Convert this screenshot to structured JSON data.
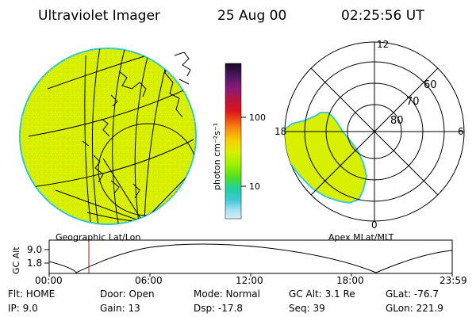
{
  "header": {
    "instrument": "Ultraviolet Imager",
    "date": "25 Aug 00",
    "time": "02:25:56 UT"
  },
  "colorbar": {
    "unit_label": "photon cm⁻²s⁻¹",
    "ticks": [
      "100",
      "10"
    ],
    "colors": [
      "#1a0a24",
      "#4a1860",
      "#8a1a7a",
      "#b8163a",
      "#e0141c",
      "#f06010",
      "#f8a010",
      "#f8d000",
      "#d8f000",
      "#a0f000",
      "#50e020",
      "#20d0a0",
      "#40c8d8",
      "#a0e0f0",
      "#d8eef8"
    ]
  },
  "left_map": {
    "caption": "Geographic Lat/Lon",
    "fill_color": "#d8f000",
    "edge_color": "#30c8d8"
  },
  "right_map": {
    "caption": "Apex MLat/MLT",
    "mlt_labels": {
      "top": "12",
      "left": "18",
      "right": "6",
      "bottom": "0"
    },
    "lat_labels": [
      "60",
      "70",
      "80"
    ],
    "fill_color": "#d8f000"
  },
  "altitude_plot": {
    "ylabel": "GC Alt",
    "yticks": [
      "9.0",
      "1.8"
    ],
    "xticks": [
      "00:00",
      "06:00",
      "12:00",
      "18:00",
      "23:59"
    ],
    "marker_color": "#d01010"
  },
  "info": {
    "row1": [
      "Flt: HOME",
      "Door: Open",
      "Mode: Normal",
      "GC Alt: 3.1 Re",
      "GLat: -76.7"
    ],
    "row2": [
      "IP:  9.0",
      "Gain: 13",
      "Dsp:  -17.8",
      "Seq: 39",
      "GLon: 221.9"
    ]
  }
}
